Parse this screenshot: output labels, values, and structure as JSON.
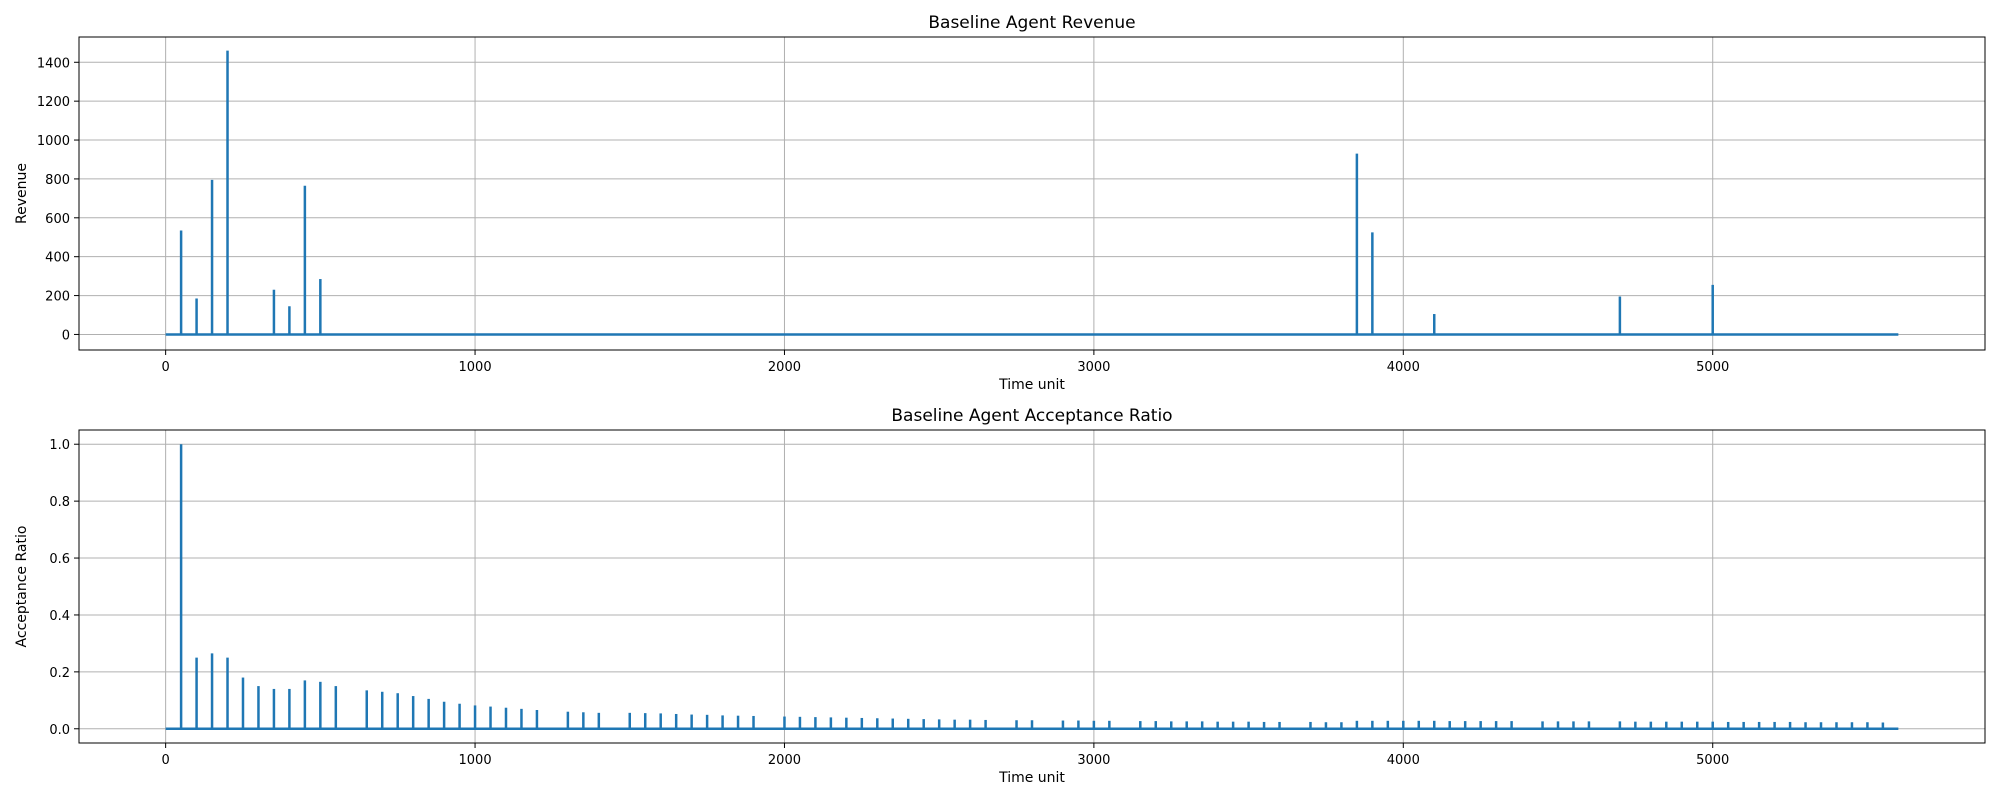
{
  "chart_data": [
    {
      "type": "line",
      "title": "Baseline Agent Revenue",
      "xlabel": "Time unit",
      "ylabel": "Revenue",
      "xlim": [
        -280,
        5880
      ],
      "ylim": [
        -80,
        1530
      ],
      "xticks": [
        0,
        1000,
        2000,
        3000,
        4000,
        5000
      ],
      "yticks": [
        0,
        200,
        400,
        600,
        800,
        1000,
        1200,
        1400
      ],
      "grid": true,
      "x_end": 5600,
      "series": [
        {
          "x": [
            50,
            100,
            150,
            200,
            350,
            400,
            450,
            500,
            3850,
            3900,
            4100,
            4700,
            5000
          ],
          "y": [
            535,
            185,
            795,
            1460,
            230,
            145,
            765,
            285,
            930,
            525,
            105,
            195,
            255
          ]
        }
      ]
    },
    {
      "type": "line",
      "title": "Baseline Agent Acceptance Ratio",
      "xlabel": "Time unit",
      "ylabel": "Acceptance Ratio",
      "xlim": [
        -280,
        5880
      ],
      "ylim": [
        -0.05,
        1.05
      ],
      "xticks": [
        0,
        1000,
        2000,
        3000,
        4000,
        5000
      ],
      "yticks": [
        0.0,
        0.2,
        0.4,
        0.6,
        0.8,
        1.0
      ],
      "grid": true,
      "x_end": 5600,
      "series": [
        {
          "x": [
            50,
            100,
            150,
            200,
            250,
            300,
            350,
            400,
            450,
            500,
            550,
            650,
            700,
            750,
            800,
            850,
            900,
            950,
            1000,
            1050,
            1100,
            1150,
            1200,
            1300,
            1350,
            1400,
            1500,
            1550,
            1600,
            1650,
            1700,
            1750,
            1800,
            1850,
            1900,
            2000,
            2050,
            2100,
            2150,
            2200,
            2250,
            2300,
            2350,
            2400,
            2450,
            2500,
            2550,
            2600,
            2650,
            2750,
            2800,
            2900,
            2950,
            3000,
            3050,
            3150,
            3200,
            3250,
            3300,
            3350,
            3400,
            3450,
            3500,
            3550,
            3600,
            3700,
            3750,
            3800,
            3850,
            3900,
            3950,
            4000,
            4050,
            4100,
            4150,
            4200,
            4250,
            4300,
            4350,
            4450,
            4500,
            4550,
            4600,
            4700,
            4750,
            4800,
            4850,
            4900,
            4950,
            5000,
            5050,
            5100,
            5150,
            5200,
            5250,
            5300,
            5350,
            5400,
            5450,
            5500,
            5550
          ],
          "y": [
            1.0,
            0.25,
            0.265,
            0.25,
            0.18,
            0.15,
            0.14,
            0.14,
            0.17,
            0.165,
            0.15,
            0.135,
            0.13,
            0.125,
            0.115,
            0.105,
            0.095,
            0.088,
            0.082,
            0.078,
            0.074,
            0.07,
            0.066,
            0.06,
            0.058,
            0.056,
            0.056,
            0.055,
            0.054,
            0.052,
            0.05,
            0.049,
            0.047,
            0.046,
            0.045,
            0.043,
            0.042,
            0.041,
            0.04,
            0.039,
            0.038,
            0.037,
            0.036,
            0.035,
            0.034,
            0.033,
            0.032,
            0.032,
            0.031,
            0.03,
            0.03,
            0.029,
            0.029,
            0.028,
            0.028,
            0.027,
            0.027,
            0.026,
            0.026,
            0.026,
            0.025,
            0.025,
            0.025,
            0.024,
            0.024,
            0.024,
            0.023,
            0.023,
            0.028,
            0.028,
            0.028,
            0.028,
            0.028,
            0.028,
            0.027,
            0.027,
            0.027,
            0.027,
            0.027,
            0.026,
            0.026,
            0.026,
            0.026,
            0.026,
            0.025,
            0.025,
            0.025,
            0.025,
            0.025,
            0.025,
            0.024,
            0.024,
            0.024,
            0.024,
            0.024,
            0.023,
            0.023,
            0.023,
            0.023,
            0.023,
            0.022
          ]
        }
      ]
    }
  ]
}
